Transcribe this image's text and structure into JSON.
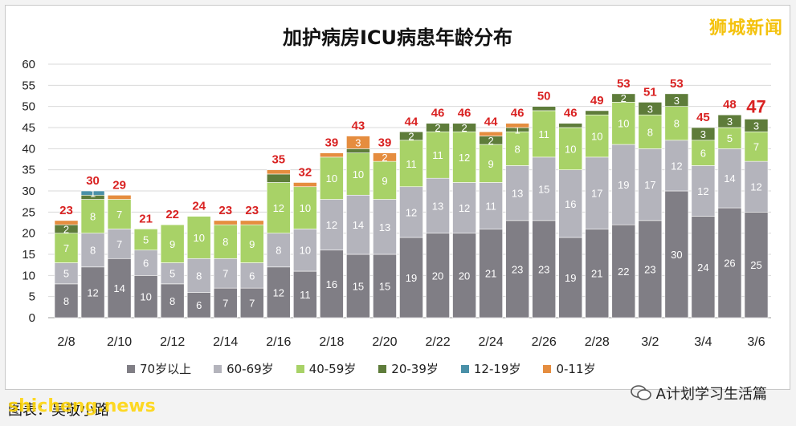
{
  "header": {
    "title": "加护病房ICU病患年龄分布",
    "logo": "狮城新闻"
  },
  "colors": {
    "age70": "#807e85",
    "age60": "#b4b4bc",
    "age40": "#a8d267",
    "age20": "#5e7c3a",
    "age12": "#4a90a8",
    "age0": "#e58d3f",
    "total": "#d92222",
    "grid": "#d9d9d9"
  },
  "chart_data": {
    "type": "bar",
    "stacked": true,
    "title": "加护病房ICU病患年龄分布",
    "ylim": [
      0,
      60
    ],
    "yticks": [
      0,
      5,
      10,
      15,
      20,
      25,
      30,
      35,
      40,
      45,
      50,
      55,
      60
    ],
    "xtick_labels": [
      "2/8",
      "2/10",
      "2/12",
      "2/14",
      "2/16",
      "2/18",
      "2/20",
      "2/22",
      "2/24",
      "2/26",
      "2/28",
      "3/2",
      "3/4",
      "3/6"
    ],
    "categories": [
      "2/8",
      "2/9",
      "2/10",
      "2/11",
      "2/12",
      "2/13",
      "2/14",
      "2/15",
      "2/16",
      "2/17",
      "2/18",
      "2/19",
      "2/20",
      "2/21",
      "2/22",
      "2/23",
      "2/24",
      "2/25",
      "2/26",
      "2/27",
      "2/28",
      "3/1",
      "3/2",
      "3/3",
      "3/4",
      "3/5",
      "3/6"
    ],
    "totals": [
      23,
      30,
      29,
      21,
      22,
      24,
      23,
      23,
      35,
      32,
      39,
      43,
      39,
      44,
      46,
      46,
      44,
      46,
      50,
      46,
      49,
      53,
      51,
      53,
      45,
      48,
      47
    ],
    "series": [
      {
        "name": "70岁以上",
        "values": [
          8,
          12,
          14,
          10,
          8,
          6,
          7,
          7,
          12,
          11,
          16,
          15,
          15,
          19,
          20,
          20,
          21,
          23,
          23,
          19,
          21,
          22,
          23,
          30,
          24,
          26,
          25
        ]
      },
      {
        "name": "60-69岁",
        "values": [
          5,
          8,
          7,
          6,
          5,
          8,
          7,
          6,
          8,
          10,
          12,
          14,
          13,
          12,
          13,
          12,
          11,
          13,
          15,
          16,
          17,
          19,
          17,
          12,
          12,
          14,
          12
        ]
      },
      {
        "name": "40-59岁",
        "values": [
          7,
          8,
          7,
          5,
          9,
          10,
          8,
          9,
          12,
          10,
          10,
          10,
          9,
          11,
          11,
          12,
          9,
          8,
          11,
          10,
          10,
          10,
          8,
          8,
          6,
          5,
          7
        ]
      },
      {
        "name": "20-39岁",
        "values": [
          2,
          1,
          0,
          0,
          0,
          0,
          0,
          0,
          2,
          0,
          0,
          1,
          0,
          2,
          2,
          2,
          2,
          1,
          1,
          1,
          1,
          2,
          3,
          3,
          3,
          3,
          3
        ]
      },
      {
        "name": "12-19岁",
        "values": [
          0,
          1,
          0,
          0,
          0,
          0,
          0,
          0,
          0,
          0,
          0,
          0,
          0,
          0,
          0,
          0,
          0,
          0,
          0,
          0,
          0,
          0,
          0,
          0,
          0,
          0,
          0
        ]
      },
      {
        "name": "0-11岁",
        "values": [
          1,
          0,
          1,
          0,
          0,
          0,
          1,
          1,
          1,
          1,
          1,
          3,
          2,
          0,
          0,
          0,
          1,
          1,
          0,
          0,
          0,
          0,
          0,
          0,
          0,
          0,
          0
        ]
      }
    ],
    "segment_labels": [
      [
        "8",
        "5",
        "7",
        "2",
        null,
        null
      ],
      [
        "12",
        "8",
        "8",
        null,
        "1",
        null
      ],
      [
        "14",
        "7",
        "7",
        null,
        null,
        null
      ],
      [
        "10",
        "6",
        "5",
        null,
        null,
        null
      ],
      [
        "8",
        "5",
        "9",
        null,
        null,
        null
      ],
      [
        "6",
        "8",
        "10",
        null,
        null,
        null
      ],
      [
        "7",
        "7",
        "8",
        null,
        null,
        null
      ],
      [
        "7",
        "6",
        "9",
        null,
        null,
        null
      ],
      [
        "12",
        "8",
        "12",
        null,
        null,
        null
      ],
      [
        "11",
        "10",
        "10",
        null,
        null,
        null
      ],
      [
        "16",
        "12",
        "10",
        null,
        null,
        null
      ],
      [
        "15",
        "14",
        "10",
        null,
        null,
        "3"
      ],
      [
        "15",
        "13",
        "9",
        null,
        null,
        "2"
      ],
      [
        "19",
        "12",
        "11",
        "2",
        null,
        null
      ],
      [
        "20",
        "13",
        "11",
        "2",
        null,
        null
      ],
      [
        "20",
        "12",
        "12",
        "2",
        null,
        null
      ],
      [
        "21",
        "11",
        "9",
        "2",
        null,
        null
      ],
      [
        "23",
        "13",
        "8",
        "1",
        null,
        null
      ],
      [
        "23",
        "15",
        "11",
        null,
        null,
        null
      ],
      [
        "19",
        "16",
        "10",
        null,
        null,
        null
      ],
      [
        "21",
        "17",
        "10",
        null,
        null,
        null
      ],
      [
        "22",
        "19",
        "10",
        "2",
        null,
        null
      ],
      [
        "23",
        "17",
        "8",
        "3",
        null,
        null
      ],
      [
        "30",
        "12",
        "8",
        "3",
        null,
        null
      ],
      [
        "24",
        "12",
        "6",
        "3",
        null,
        null
      ],
      [
        "26",
        "14",
        "5",
        "3",
        null,
        null
      ],
      [
        "25",
        "12",
        "7",
        "3",
        null,
        null
      ]
    ],
    "legend_position": "bottom",
    "grid": true
  },
  "footer": {
    "caption": "图表：吴敬小路",
    "watermark": "shicheng.news",
    "account": "A计划学习生活篇"
  }
}
